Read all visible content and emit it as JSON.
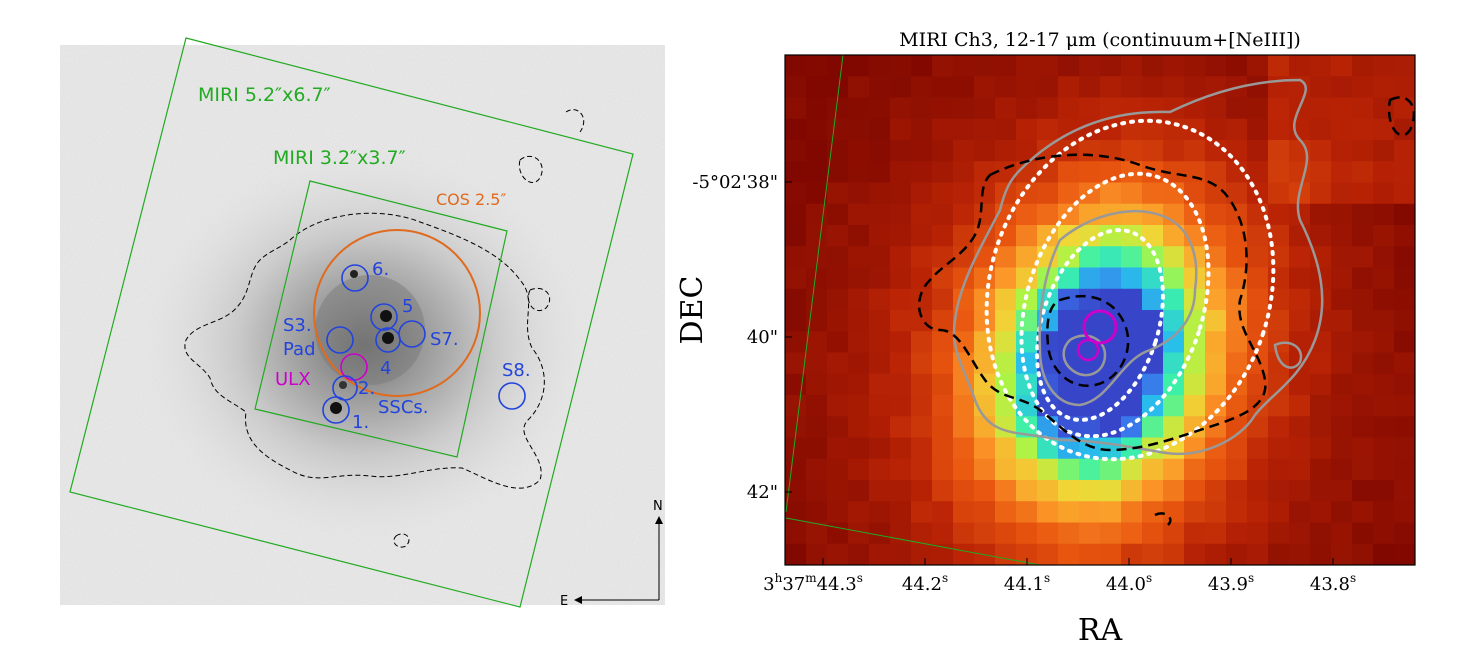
{
  "left_panel": {
    "fov_labels": {
      "miri_large": "MIRI 5.2″x6.7″",
      "miri_small": "MIRI 3.2″x3.7″",
      "cos": "COS 2.5″"
    },
    "regions": [
      {
        "id": "6",
        "label": "6."
      },
      {
        "id": "5",
        "label": "5"
      },
      {
        "id": "S7",
        "label": "S7."
      },
      {
        "id": "S3",
        "label": "S3."
      },
      {
        "id": "Pad",
        "label": "Pad"
      },
      {
        "id": "4",
        "label": "4"
      },
      {
        "id": "2",
        "label": "2."
      },
      {
        "id": "1",
        "label": "1."
      },
      {
        "id": "S8",
        "label": "S8."
      },
      {
        "id": "SSCs",
        "label": "SSCs."
      },
      {
        "id": "ULX",
        "label": "ULX"
      }
    ],
    "compass": {
      "north": "N",
      "east": "E"
    },
    "colors": {
      "fov": "#22aa22",
      "cos": "#e06a1e",
      "regions": "#2244dd",
      "ulx": "#cc00cc"
    }
  },
  "right_panel": {
    "title": "MIRI Ch3, 12-17 μm (continuum+[NeIII])",
    "xlabel": "RA",
    "ylabel": "DEC",
    "xticks": [
      {
        "h": "3",
        "m": "37",
        "s": "44.3",
        "label": "3h37m44.3s"
      },
      {
        "s": "44.2",
        "label": "44.2s"
      },
      {
        "s": "44.1",
        "label": "44.1s"
      },
      {
        "s": "44.0",
        "label": "44.0s"
      },
      {
        "s": "43.9",
        "label": "43.9s"
      },
      {
        "s": "43.8",
        "label": "43.8s"
      }
    ],
    "yticks": [
      "-5°02'38\"",
      "40\"",
      "42\""
    ],
    "colormap": "turbo",
    "contour_styles": [
      "black dashed",
      "grey solid",
      "white dotted"
    ]
  }
}
